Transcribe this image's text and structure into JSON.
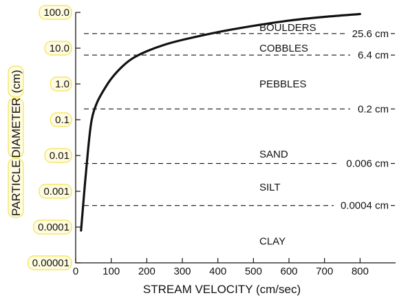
{
  "chart_data": {
    "type": "line",
    "title": "",
    "xlabel": "STREAM VELOCITY (cm/sec)",
    "ylabel_words": [
      "PARTICLE",
      "DIAMETER",
      "(cm)"
    ],
    "x_scale": "linear",
    "y_scale": "log",
    "xlim": [
      0,
      900
    ],
    "ylim": [
      1e-05,
      100
    ],
    "x_ticks": [
      0,
      100,
      200,
      300,
      400,
      500,
      600,
      700,
      800
    ],
    "y_ticks": [
      {
        "value": 100,
        "label": "100.0"
      },
      {
        "value": 10,
        "label": "10.0"
      },
      {
        "value": 1,
        "label": "1.0"
      },
      {
        "value": 0.1,
        "label": "0.1"
      },
      {
        "value": 0.01,
        "label": "0.01"
      },
      {
        "value": 0.001,
        "label": "0.001"
      },
      {
        "value": 0.0001,
        "label": "0.0001"
      },
      {
        "value": 1e-05,
        "label": "0.00001"
      }
    ],
    "grid": false,
    "series": [
      {
        "x": [
          15,
          25,
          35,
          45,
          60,
          80,
          100,
          130,
          160,
          200,
          250,
          300,
          400,
          500,
          600,
          700,
          800
        ],
        "y": [
          8e-05,
          0.0012,
          0.015,
          0.1,
          0.3,
          0.7,
          1.4,
          3.0,
          5.2,
          8.2,
          12.5,
          17,
          28,
          42,
          59,
          75,
          90
        ]
      }
    ],
    "thresholds": [
      {
        "value": 25.6,
        "label": "25.6 cm"
      },
      {
        "value": 6.4,
        "label": "6.4 cm"
      },
      {
        "value": 0.2,
        "label": "0.2 cm"
      },
      {
        "value": 0.006,
        "label": "0.006 cm"
      },
      {
        "value": 0.0004,
        "label": "0.0004 cm"
      }
    ],
    "classes": [
      {
        "label": "BOULDERS",
        "y": 38
      },
      {
        "label": "COBBLES",
        "y": 10
      },
      {
        "label": "PEBBLES",
        "y": 1
      },
      {
        "label": "SAND",
        "y": 0.011
      },
      {
        "label": "SILT",
        "y": 0.0013
      },
      {
        "label": "CLAY",
        "y": 4e-05
      }
    ]
  }
}
